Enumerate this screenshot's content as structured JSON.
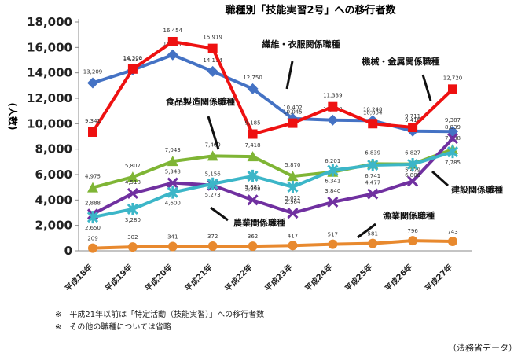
{
  "chart_data": {
    "type": "line",
    "title": "職種別「技能実習2号」への移行者数",
    "ylabel": "(人数)",
    "ylim": [
      0,
      18000
    ],
    "yticks": [
      "0",
      "2,000",
      "4,000",
      "6,000",
      "8,000",
      "10,000",
      "12,000",
      "14,000",
      "16,000",
      "18,000"
    ],
    "categories": [
      "平成18年",
      "平成19年",
      "平成20年",
      "平成21年",
      "平成22年",
      "平成23年",
      "平成24年",
      "平成25年",
      "平成26年",
      "平成27年"
    ],
    "series": [
      {
        "name": "繊維・衣服関係職種",
        "color": "#4472c4",
        "marker": "diamond",
        "values": [
          13209,
          14224,
          15417,
          14114,
          12750,
          10402,
          10280,
          10248,
          9415,
          9387
        ],
        "labels": [
          "13,209",
          "14,224",
          "15,417",
          "14,114",
          "12,750",
          "10,402",
          "10,280",
          "10,248",
          "9,415",
          "9,387"
        ]
      },
      {
        "name": "機械・金属関係職種",
        "color": "#ee1111",
        "marker": "square",
        "values": [
          9341,
          14300,
          16454,
          15919,
          9185,
          10045,
          11339,
          10004,
          9711,
          12720
        ],
        "labels": [
          "9,341",
          "14,300",
          "16,454",
          "15,919",
          "9,185",
          "10,045",
          "11,339",
          "10,004",
          "9,711",
          "12,720"
        ]
      },
      {
        "name": "食品製造関係職種",
        "color": "#7fb535",
        "marker": "triangle",
        "values": [
          4975,
          5807,
          7043,
          7460,
          7418,
          5870,
          6201,
          6839,
          6827,
          7988
        ],
        "labels": [
          "4,975",
          "5,807",
          "7,043",
          "7,460",
          "7,418",
          "5,870",
          "6,201",
          "6,839",
          "6,827",
          "7,988"
        ]
      },
      {
        "name": "建設関係職種",
        "color": "#7030a0",
        "marker": "x",
        "values": [
          2888,
          4518,
          5348,
          5156,
          3998,
          2964,
          3840,
          4477,
          5479,
          8839
        ],
        "labels": [
          "2,888",
          "4,518",
          "5,348",
          "5,156",
          "3,998",
          "2,964",
          "3,840",
          "4,477",
          "5,479",
          "8,839"
        ]
      },
      {
        "name": "農業関係職種",
        "color": "#3cb6c8",
        "marker": "star",
        "values": [
          2650,
          3280,
          4600,
          5273,
          5881,
          5022,
          6341,
          6741,
          6806,
          7785
        ],
        "labels": [
          "2,650",
          "3,280",
          "4,600",
          "5,273",
          "5,881",
          "5,022",
          "6,341",
          "6,741",
          "6,806",
          "7,785"
        ]
      },
      {
        "name": "漁業関係職種",
        "color": "#e8892e",
        "marker": "circle",
        "values": [
          209,
          302,
          341,
          372,
          362,
          417,
          517,
          581,
          796,
          743
        ],
        "labels": [
          "209",
          "302",
          "341",
          "372",
          "362",
          "417",
          "517",
          "581",
          "796",
          "743"
        ]
      }
    ],
    "grid": false,
    "legend": "inline labels with arrows"
  },
  "notes": [
    "※　平成21年以前は「特定活動（技能実習）」への移行者数",
    "※　その他の職種については省略"
  ],
  "source": "（法務省データ）"
}
